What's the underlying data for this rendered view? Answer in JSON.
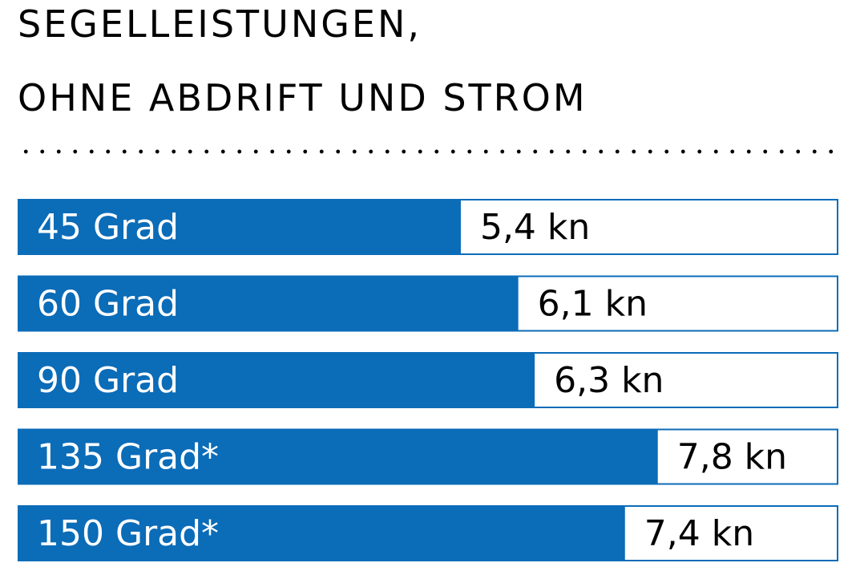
{
  "title": {
    "line1": "SEGELLEISTUNGEN,",
    "line2": "OHNE ABDRIFT UND STROM"
  },
  "colors": {
    "bar": "#0b6cb8",
    "frame": "#0b6cb8",
    "background": "#ffffff"
  },
  "chart_data": {
    "type": "bar",
    "orientation": "horizontal",
    "categories": [
      "45 Grad",
      "60 Grad",
      "90 Grad",
      "135 Grad*",
      "150 Grad*"
    ],
    "values": [
      5.4,
      6.1,
      6.3,
      7.8,
      7.4
    ],
    "value_labels": [
      "5,4 kn",
      "6,1 kn",
      "6,3 kn",
      "7,8 kn",
      "7,4 kn"
    ],
    "unit": "kn",
    "xlim": [
      0,
      10
    ],
    "grid": false,
    "legend": "none"
  }
}
